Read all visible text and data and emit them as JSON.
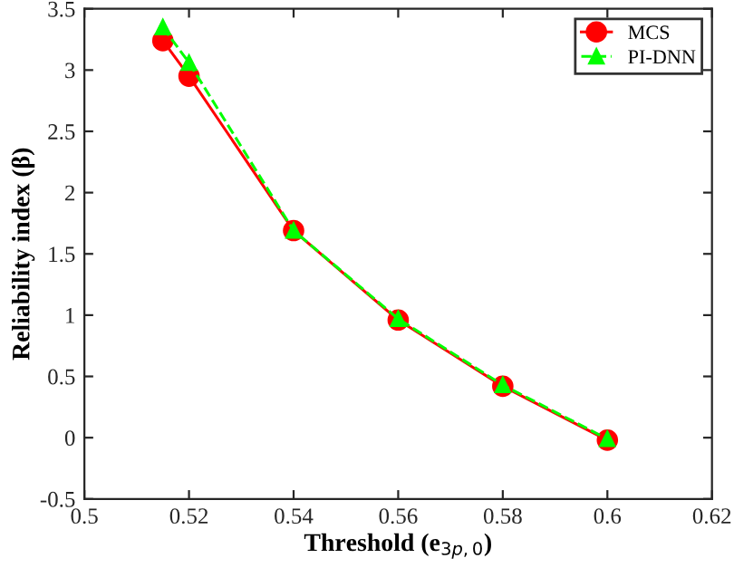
{
  "chart_data": {
    "type": "line",
    "xlabel": "Threshold (e$_{3p,0}$)",
    "ylabel": "Reliability index (β)",
    "x": [
      0.515,
      0.52,
      0.54,
      0.56,
      0.58,
      0.6
    ],
    "series": [
      {
        "name": "MCS",
        "color": "#ff0000",
        "marker": "circle",
        "line_style": "solid",
        "values": [
          3.24,
          2.95,
          1.69,
          0.96,
          0.42,
          -0.02
        ]
      },
      {
        "name": "PI-DNN",
        "color": "#00ff00",
        "marker": "triangle",
        "line_style": "dashed",
        "values": [
          3.35,
          3.06,
          1.69,
          0.97,
          0.43,
          -0.01
        ]
      }
    ],
    "xlim": [
      0.5,
      0.62
    ],
    "xticks": [
      0.5,
      0.52,
      0.54,
      0.56,
      0.58,
      0.6,
      0.62
    ],
    "ylim": [
      -0.5,
      3.5
    ],
    "yticks": [
      -0.5,
      0,
      0.5,
      1,
      1.5,
      2,
      2.5,
      3,
      3.5
    ],
    "grid": false,
    "legend": "top right"
  }
}
